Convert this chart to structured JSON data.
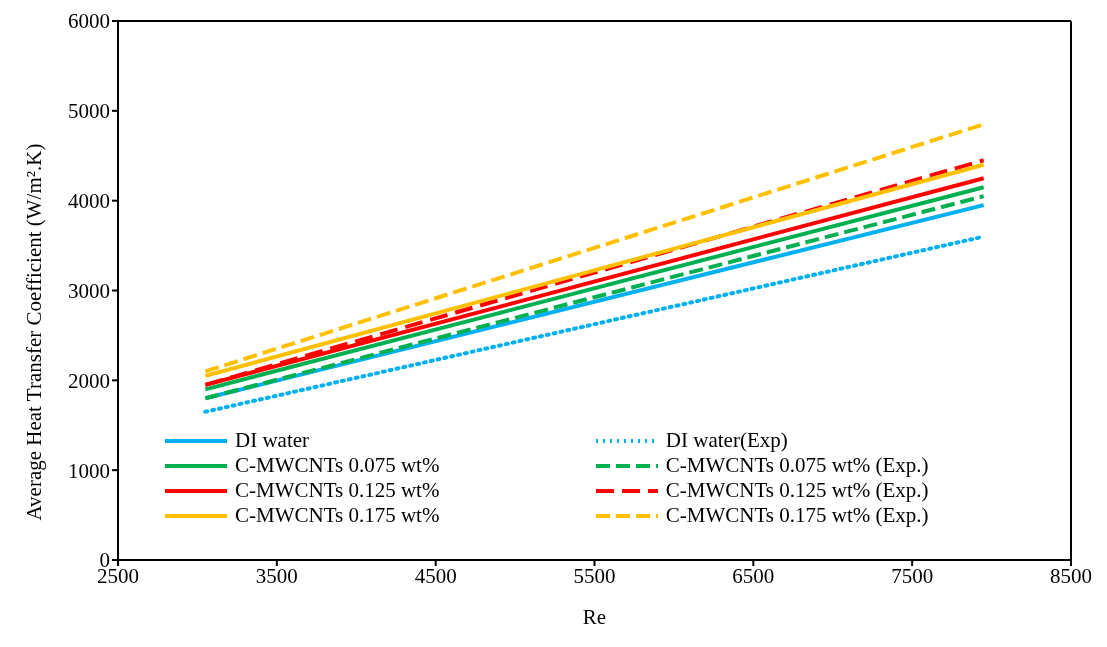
{
  "chart_data": {
    "type": "line",
    "xlabel": "Re",
    "ylabel": "Average Heat Transfer Coefficient (W/m².K)",
    "x": [
      3050,
      7950
    ],
    "series": [
      {
        "name": "DI water",
        "color": "#00b0f0",
        "line_style": "solid",
        "values": [
          1800,
          3950
        ]
      },
      {
        "name": "DI water(Exp)",
        "color": "#00b0f0",
        "line_style": "dotted",
        "values": [
          1650,
          3600
        ]
      },
      {
        "name": "C-MWCNTs 0.075 wt%",
        "color": "#00b050",
        "line_style": "solid",
        "values": [
          1900,
          4150
        ]
      },
      {
        "name": "C-MWCNTs 0.075 wt% (Exp.)",
        "color": "#00b050",
        "line_style": "dashed",
        "values": [
          1800,
          4050
        ]
      },
      {
        "name": "C-MWCNTs 0.125 wt%",
        "color": "#ff0000",
        "line_style": "solid",
        "values": [
          1950,
          4250
        ]
      },
      {
        "name": "C-MWCNTs 0.125 wt% (Exp.)",
        "color": "#ff0000",
        "line_style": "dashed",
        "values": [
          1950,
          4450
        ]
      },
      {
        "name": "C-MWCNTs 0.175 wt%",
        "color": "#ffc000",
        "line_style": "solid",
        "values": [
          2050,
          4400
        ]
      },
      {
        "name": "C-MWCNTs 0.175 wt% (Exp.)",
        "color": "#ffc000",
        "line_style": "dashed",
        "values": [
          2100,
          4850
        ]
      }
    ],
    "xlim": [
      2500,
      8500
    ],
    "xticks": [
      2500,
      3500,
      4500,
      5500,
      6500,
      7500,
      8500
    ],
    "ylim": [
      0,
      6000
    ],
    "yticks": [
      0,
      1000,
      2000,
      3000,
      4000,
      5000,
      6000
    ],
    "grid": false,
    "legend": "bottom",
    "marker": "none"
  }
}
